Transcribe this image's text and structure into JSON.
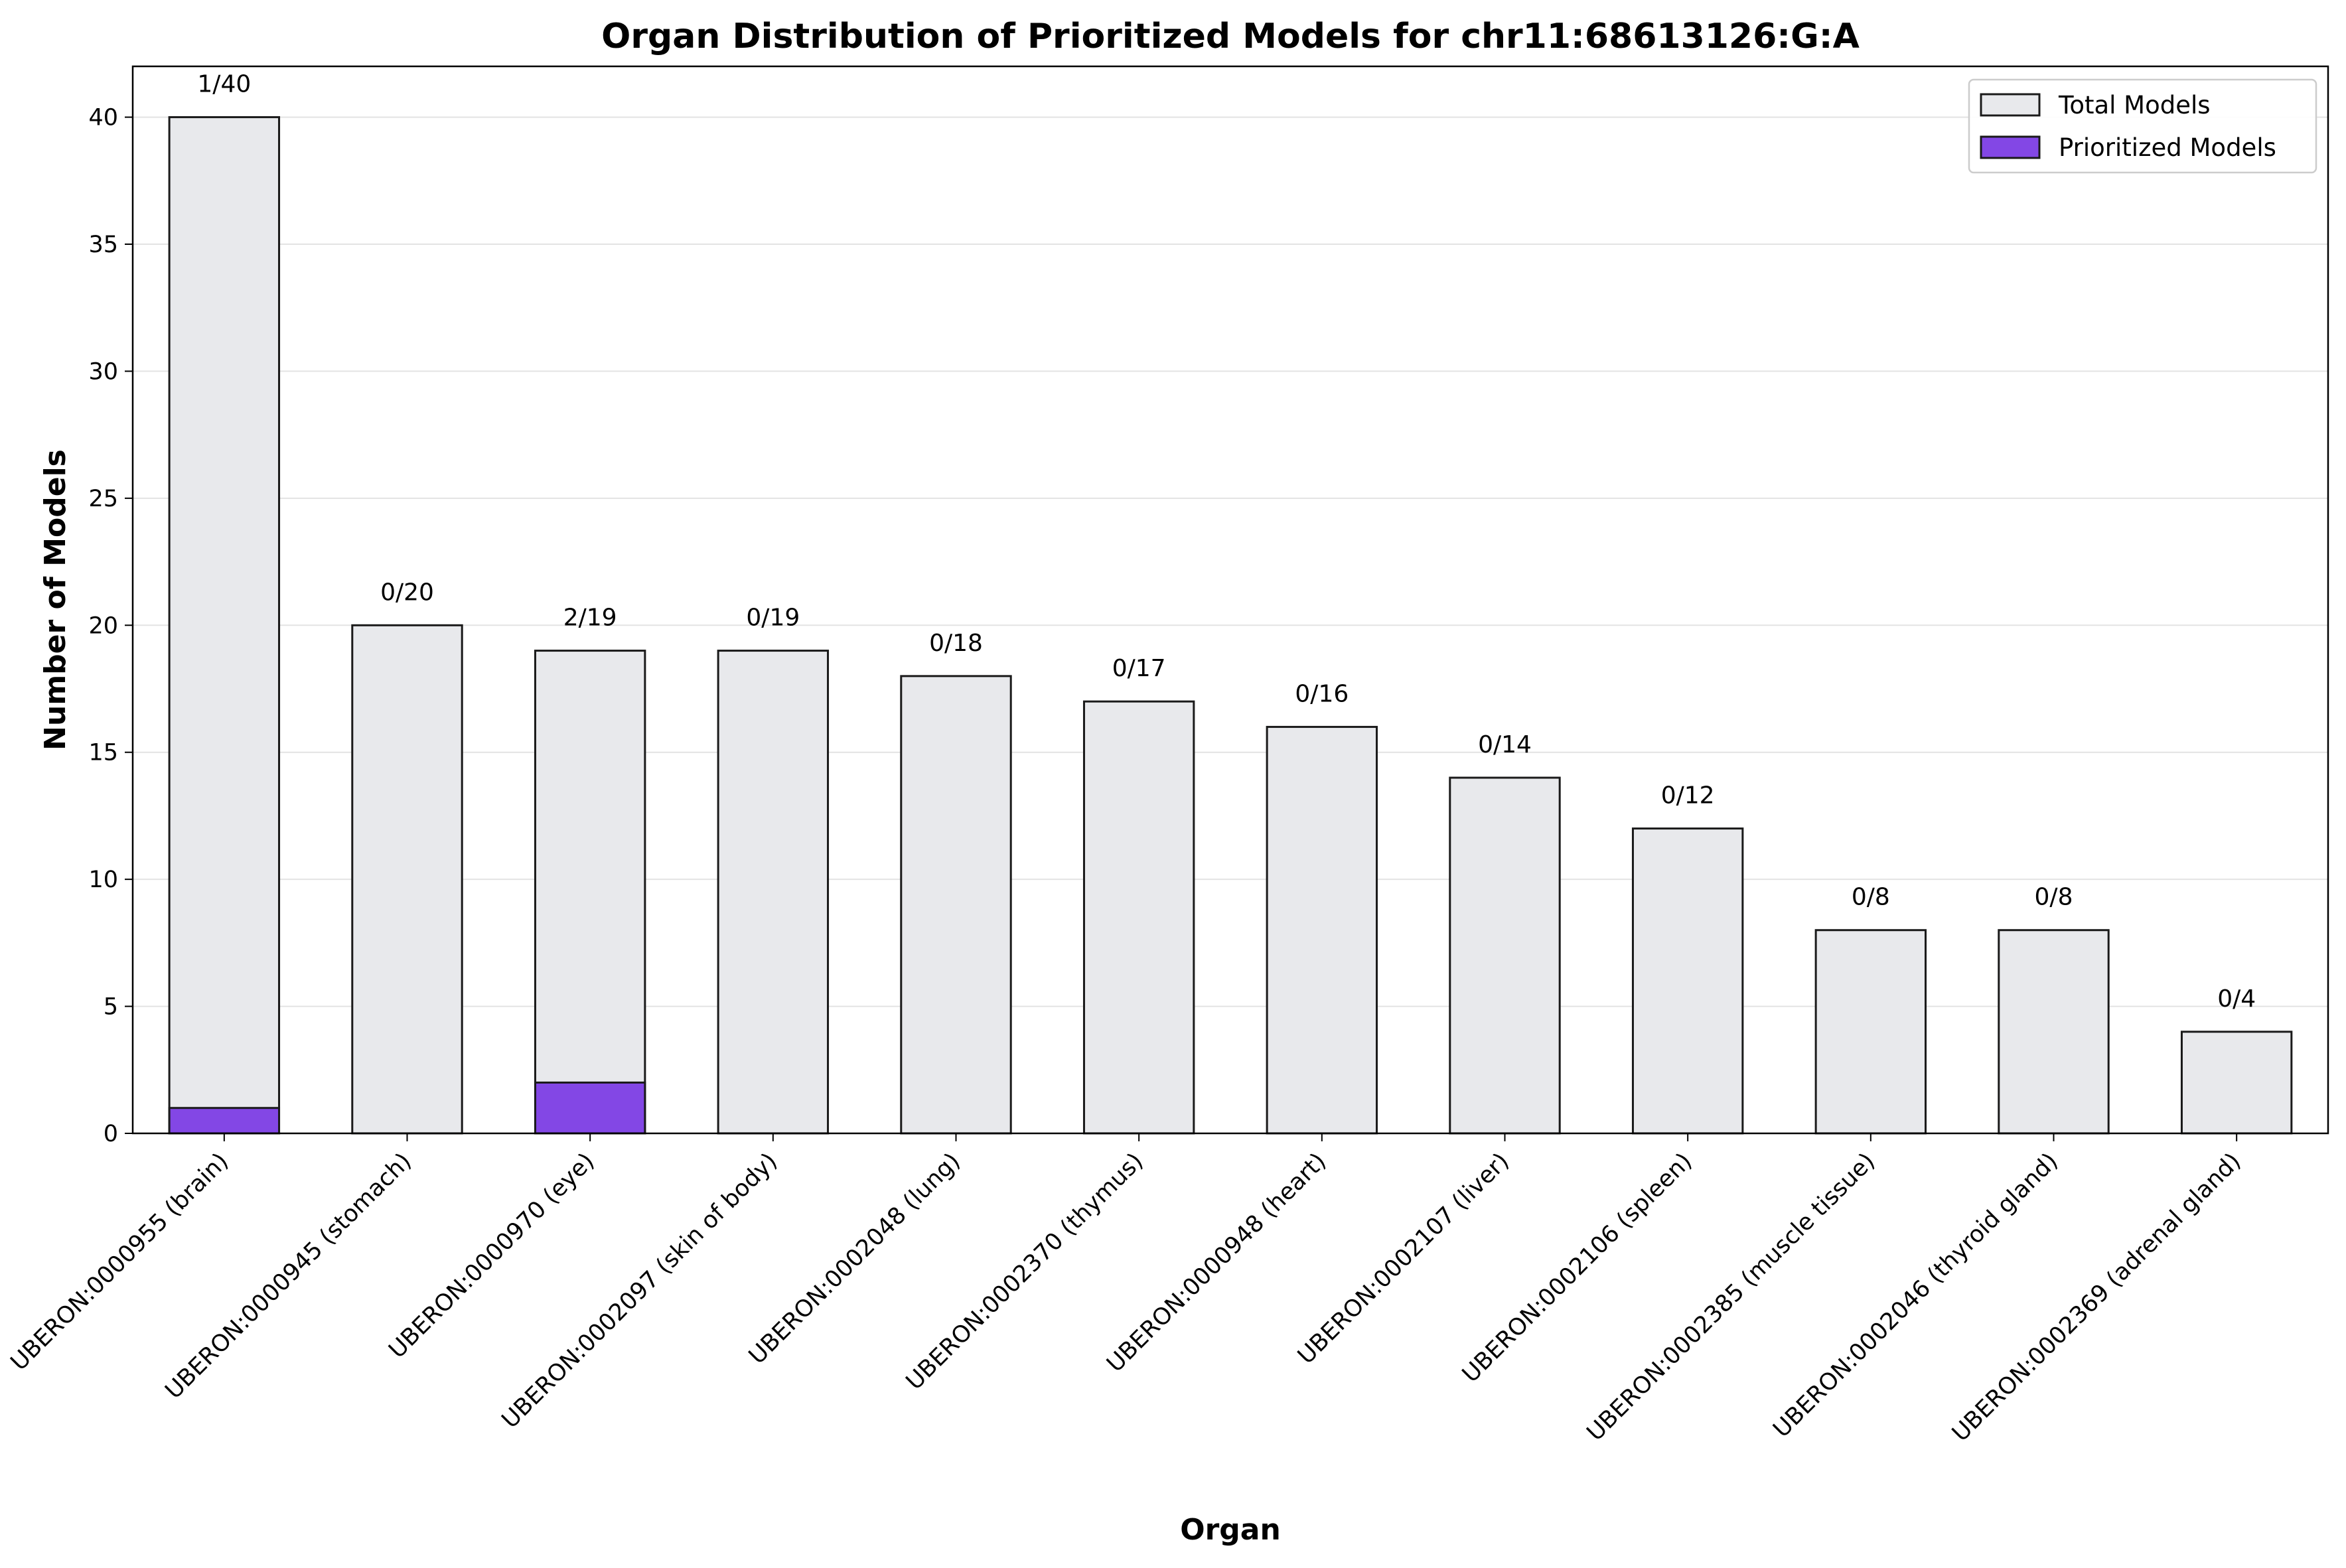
{
  "chart_data": {
    "type": "bar",
    "title": "Organ Distribution of Prioritized Models for chr11:68613126:G:A",
    "xlabel": "Organ",
    "ylabel": "Number of Models",
    "ylim": [
      0,
      42
    ],
    "yticks": [
      0,
      5,
      10,
      15,
      20,
      25,
      30,
      35,
      40
    ],
    "grid": "y",
    "legend_position": "top-right",
    "categories": [
      "UBERON:0000955 (brain)",
      "UBERON:0000945 (stomach)",
      "UBERON:0000970 (eye)",
      "UBERON:0002097 (skin of body)",
      "UBERON:0002048 (lung)",
      "UBERON:0002370 (thymus)",
      "UBERON:0000948 (heart)",
      "UBERON:0002107 (liver)",
      "UBERON:0002106 (spleen)",
      "UBERON:0002385 (muscle tissue)",
      "UBERON:0002046 (thyroid gland)",
      "UBERON:0002369 (adrenal gland)"
    ],
    "series": [
      {
        "name": "Total Models",
        "color": "#e8e9ec",
        "values": [
          40,
          20,
          19,
          19,
          18,
          17,
          16,
          14,
          12,
          8,
          8,
          4
        ]
      },
      {
        "name": "Prioritized Models",
        "color": "#8347e5",
        "values": [
          1,
          0,
          2,
          0,
          0,
          0,
          0,
          0,
          0,
          0,
          0,
          0
        ]
      }
    ],
    "bar_labels": [
      "1/40",
      "0/20",
      "2/19",
      "0/19",
      "0/18",
      "0/17",
      "0/16",
      "0/14",
      "0/12",
      "0/8",
      "0/8",
      "0/4"
    ]
  }
}
